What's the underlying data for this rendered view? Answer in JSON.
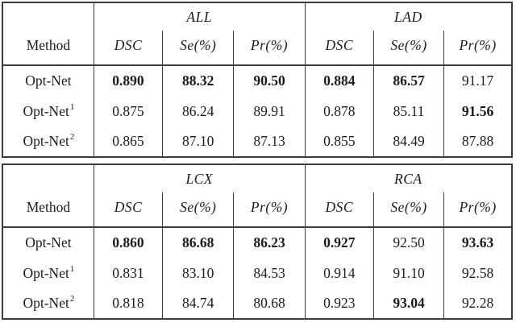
{
  "tables": [
    {
      "method_label": "Method",
      "groups": [
        "ALL",
        "LAD"
      ],
      "cols": [
        "DSC",
        "Se(%)",
        "Pr(%)",
        "DSC",
        "Se(%)",
        "Pr(%)"
      ],
      "rows": [
        {
          "m": "Opt-Net",
          "sup": "",
          "c": [
            {
              "v": "0.890",
              "b": true
            },
            {
              "v": "88.32",
              "b": true
            },
            {
              "v": "90.50",
              "b": true
            },
            {
              "v": "0.884",
              "b": true
            },
            {
              "v": "86.57",
              "b": true
            },
            {
              "v": "91.17",
              "b": false
            }
          ]
        },
        {
          "m": "Opt-Net",
          "sup": "1",
          "c": [
            {
              "v": "0.875",
              "b": false
            },
            {
              "v": "86.24",
              "b": false
            },
            {
              "v": "89.91",
              "b": false
            },
            {
              "v": "0.878",
              "b": false
            },
            {
              "v": "85.11",
              "b": false
            },
            {
              "v": "91.56",
              "b": true
            }
          ]
        },
        {
          "m": "Opt-Net",
          "sup": "2",
          "c": [
            {
              "v": "0.865",
              "b": false
            },
            {
              "v": "87.10",
              "b": false
            },
            {
              "v": "87.13",
              "b": false
            },
            {
              "v": "0.855",
              "b": false
            },
            {
              "v": "84.49",
              "b": false
            },
            {
              "v": "87.88",
              "b": false
            }
          ]
        }
      ]
    },
    {
      "method_label": "Method",
      "groups": [
        "LCX",
        "RCA"
      ],
      "cols": [
        "DSC",
        "Se(%)",
        "Pr(%)",
        "DSC",
        "Se(%)",
        "Pr(%)"
      ],
      "rows": [
        {
          "m": "Opt-Net",
          "sup": "",
          "c": [
            {
              "v": "0.860",
              "b": true
            },
            {
              "v": "86.68",
              "b": true
            },
            {
              "v": "86.23",
              "b": true
            },
            {
              "v": "0.927",
              "b": true
            },
            {
              "v": "92.50",
              "b": false
            },
            {
              "v": "93.63",
              "b": true
            }
          ]
        },
        {
          "m": "Opt-Net",
          "sup": "1",
          "c": [
            {
              "v": "0.831",
              "b": false
            },
            {
              "v": "83.10",
              "b": false
            },
            {
              "v": "84.53",
              "b": false
            },
            {
              "v": "0.914",
              "b": false
            },
            {
              "v": "91.10",
              "b": false
            },
            {
              "v": "92.58",
              "b": false
            }
          ]
        },
        {
          "m": "Opt-Net",
          "sup": "2",
          "c": [
            {
              "v": "0.818",
              "b": false
            },
            {
              "v": "84.74",
              "b": false
            },
            {
              "v": "80.68",
              "b": false
            },
            {
              "v": "0.923",
              "b": false
            },
            {
              "v": "93.04",
              "b": true
            },
            {
              "v": "92.28",
              "b": false
            }
          ]
        }
      ]
    }
  ]
}
